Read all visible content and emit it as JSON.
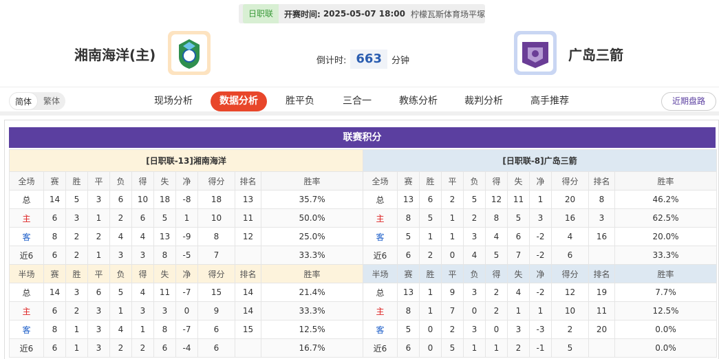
{
  "header": {
    "league": "日职联",
    "start_label": "开赛时间:",
    "start_time": "2025-05-07 18:00",
    "venue": "柠檬瓦斯体育场平塚",
    "home_team": "湘南海洋(主)",
    "away_team": "广岛三箭",
    "countdown_label": "倒计时:",
    "countdown": 663,
    "countdown_unit": "分钟"
  },
  "nav": {
    "lang": [
      "简体",
      "繁体"
    ],
    "tabs": [
      "现场分析",
      "数据分析",
      "胜平负",
      "三合一",
      "教练分析",
      "裁判分析",
      "高手推荐"
    ],
    "active_tab": 1,
    "right": "近期盘路"
  },
  "standings": {
    "title": "联赛积分",
    "teams": [
      {
        "title": "[日职联-13]湘南海洋",
        "blocks": [
          {
            "header": [
              "全场",
              "赛",
              "胜",
              "平",
              "负",
              "得",
              "失",
              "净",
              "得分",
              "排名",
              "胜率"
            ],
            "rows": [
              [
                "总",
                14,
                5,
                3,
                6,
                10,
                18,
                -8,
                18,
                13,
                "35.7%"
              ],
              [
                "主",
                6,
                3,
                1,
                2,
                6,
                5,
                1,
                10,
                11,
                "50.0%"
              ],
              [
                "客",
                8,
                2,
                2,
                4,
                4,
                13,
                -9,
                8,
                12,
                "25.0%"
              ],
              [
                "近6",
                6,
                2,
                1,
                3,
                3,
                8,
                -5,
                7,
                null,
                "33.3%"
              ]
            ]
          },
          {
            "header": [
              "半场",
              "赛",
              "胜",
              "平",
              "负",
              "得",
              "失",
              "净",
              "得分",
              "排名",
              "胜率"
            ],
            "rows": [
              [
                "总",
                14,
                3,
                6,
                5,
                4,
                11,
                -7,
                15,
                14,
                "21.4%"
              ],
              [
                "主",
                6,
                2,
                3,
                1,
                3,
                3,
                0,
                9,
                14,
                "33.3%"
              ],
              [
                "客",
                8,
                1,
                3,
                4,
                1,
                8,
                -7,
                6,
                15,
                "12.5%"
              ],
              [
                "近6",
                6,
                1,
                3,
                2,
                2,
                6,
                -4,
                6,
                null,
                "16.7%"
              ]
            ]
          }
        ]
      },
      {
        "title": "[日职联-8]广岛三箭",
        "blocks": [
          {
            "header": [
              "全场",
              "赛",
              "胜",
              "平",
              "负",
              "得",
              "失",
              "净",
              "得分",
              "排名",
              "胜率"
            ],
            "rows": [
              [
                "总",
                13,
                6,
                2,
                5,
                12,
                11,
                1,
                20,
                8,
                "46.2%"
              ],
              [
                "主",
                8,
                5,
                1,
                2,
                8,
                5,
                3,
                16,
                3,
                "62.5%"
              ],
              [
                "客",
                5,
                1,
                1,
                3,
                4,
                6,
                -2,
                4,
                16,
                "20.0%"
              ],
              [
                "近6",
                6,
                2,
                0,
                4,
                5,
                7,
                -2,
                6,
                null,
                "33.3%"
              ]
            ]
          },
          {
            "header": [
              "半场",
              "赛",
              "胜",
              "平",
              "负",
              "得",
              "失",
              "净",
              "得分",
              "排名",
              "胜率"
            ],
            "rows": [
              [
                "总",
                13,
                1,
                9,
                3,
                2,
                4,
                -2,
                12,
                19,
                "7.7%"
              ],
              [
                "主",
                8,
                1,
                7,
                0,
                2,
                1,
                1,
                10,
                11,
                "12.5%"
              ],
              [
                "客",
                5,
                0,
                2,
                3,
                0,
                3,
                -3,
                2,
                20,
                "0.0%"
              ],
              [
                "近6",
                6,
                0,
                5,
                1,
                1,
                2,
                -1,
                5,
                null,
                "0.0%"
              ]
            ]
          }
        ]
      }
    ]
  }
}
